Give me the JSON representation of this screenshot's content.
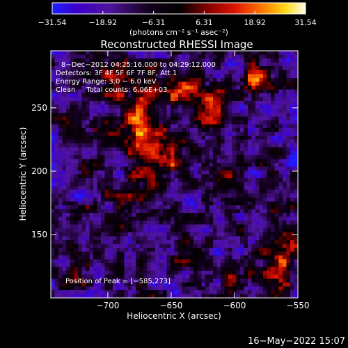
{
  "chart_data": {
    "type": "heatmap",
    "title": "Reconstructed RHESSI Image",
    "xlabel": "Heliocentric X (arcsec)",
    "ylabel": "Heliocentric Y (arcsec)",
    "xlim": [
      -745,
      -550
    ],
    "ylim": [
      100,
      295
    ],
    "x_ticks": [
      -700,
      -650,
      -600,
      -550
    ],
    "x_tick_labels": [
      "−700",
      "−650",
      "−600",
      "−550"
    ],
    "y_ticks": [
      150,
      200,
      250
    ],
    "y_tick_labels": [
      "150",
      "200",
      "250"
    ],
    "colorbar": {
      "range": [
        -31.54,
        31.54
      ],
      "ticks": [
        -31.54,
        -18.92,
        -6.31,
        6.31,
        18.92,
        31.54
      ],
      "tick_labels": [
        "−31.54",
        "−18.92",
        "−6.31",
        "6.31",
        "18.92",
        "31.54"
      ],
      "unit_label": "(photons cm⁻² s⁻¹ asec⁻²)"
    },
    "annotations": [
      "8−Dec−2012 04:25:16.000 to 04:29:12.000",
      "Detectors: 3F 4F 5F 6F 7F 8F, Att 1",
      "Energy Range: 3.0 − 6.0 keV",
      "Clean     Total counts: 6.06E+03"
    ],
    "peak_label": "Position of Peak = [−585,273]",
    "peak": {
      "x": -585,
      "y": 273
    },
    "sources": [
      {
        "x": -660,
        "y": 215,
        "sx": 14,
        "sy": 12,
        "amp": 30
      },
      {
        "x": -678,
        "y": 240,
        "sx": 10,
        "sy": 22,
        "amp": 22
      },
      {
        "x": -640,
        "y": 262,
        "sx": 20,
        "sy": 10,
        "amp": 20
      },
      {
        "x": -700,
        "y": 268,
        "sx": 10,
        "sy": 12,
        "amp": 16
      },
      {
        "x": -672,
        "y": 185,
        "sx": 16,
        "sy": 10,
        "amp": 16
      },
      {
        "x": -618,
        "y": 245,
        "sx": 8,
        "sy": 16,
        "amp": 14
      },
      {
        "x": -610,
        "y": 195,
        "sx": 10,
        "sy": 12,
        "amp": 12
      },
      {
        "x": -585,
        "y": 273,
        "sx": 7,
        "sy": 7,
        "amp": 31
      },
      {
        "x": -565,
        "y": 130,
        "sx": 10,
        "sy": 22,
        "amp": 20
      },
      {
        "x": -640,
        "y": 135,
        "sx": 12,
        "sy": 8,
        "amp": 14
      },
      {
        "x": -700,
        "y": 150,
        "sx": 12,
        "sy": 8,
        "amp": 12
      },
      {
        "x": -725,
        "y": 240,
        "sx": 8,
        "sy": 8,
        "amp": 10
      },
      {
        "x": -600,
        "y": 115,
        "sx": 8,
        "sy": 8,
        "amp": 12
      },
      {
        "x": -725,
        "y": 120,
        "sx": 10,
        "sy": 8,
        "amp": 10
      }
    ],
    "grid": false,
    "background_level": -14,
    "noise_amplitude": 14,
    "colormap": "3f-blue-black-red-yellow-white"
  },
  "footer": {
    "timestamp": "16−May−2022 15:07"
  }
}
